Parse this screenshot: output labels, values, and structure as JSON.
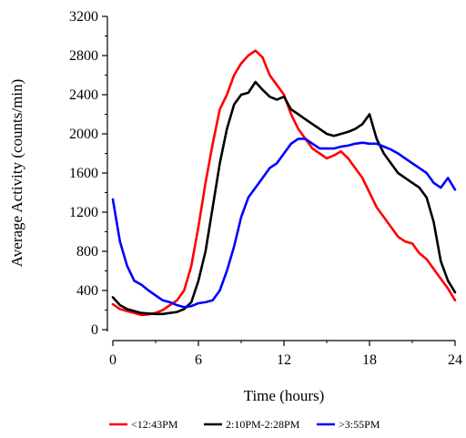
{
  "chart_data": {
    "type": "line",
    "xlabel": "Time (hours)",
    "ylabel": "Average Activity (counts/min)",
    "xlim": [
      0,
      24
    ],
    "ylim": [
      0,
      3200
    ],
    "xticks": [
      0,
      6,
      12,
      18,
      24
    ],
    "yticks": [
      0,
      400,
      800,
      1200,
      1600,
      2000,
      2400,
      2800,
      3200
    ],
    "grid": false,
    "legend_position": "bottom",
    "series": [
      {
        "name": "<12:43PM",
        "color": "#ff0000",
        "x": [
          0,
          0.5,
          1,
          1.5,
          2,
          2.5,
          3,
          3.5,
          4,
          4.5,
          5,
          5.5,
          6,
          6.5,
          7,
          7.5,
          8,
          8.5,
          9,
          9.5,
          10,
          10.5,
          11,
          11.5,
          12,
          12.5,
          13,
          13.5,
          14,
          14.5,
          15,
          15.5,
          16,
          16.5,
          17,
          17.5,
          18,
          18.5,
          19,
          19.5,
          20,
          20.5,
          21,
          21.5,
          22,
          22.5,
          23,
          23.5,
          24
        ],
        "values": [
          260,
          210,
          190,
          170,
          150,
          155,
          170,
          200,
          250,
          300,
          400,
          650,
          1050,
          1500,
          1900,
          2250,
          2400,
          2600,
          2720,
          2800,
          2850,
          2780,
          2600,
          2500,
          2400,
          2200,
          2050,
          1950,
          1850,
          1800,
          1750,
          1780,
          1820,
          1750,
          1650,
          1550,
          1400,
          1250,
          1150,
          1050,
          950,
          900,
          880,
          780,
          720,
          620,
          520,
          420,
          300
        ]
      },
      {
        "name": "2:10PM-2:28PM",
        "color": "#000000",
        "x": [
          0,
          0.5,
          1,
          1.5,
          2,
          2.5,
          3,
          3.5,
          4,
          4.5,
          5,
          5.5,
          6,
          6.5,
          7,
          7.5,
          8,
          8.5,
          9,
          9.5,
          10,
          10.5,
          11,
          11.5,
          12,
          12.5,
          13,
          13.5,
          14,
          14.5,
          15,
          15.5,
          16,
          16.5,
          17,
          17.5,
          18,
          18.5,
          19,
          19.5,
          20,
          20.5,
          21,
          21.5,
          22,
          22.5,
          23,
          23.5,
          24
        ],
        "values": [
          330,
          250,
          210,
          190,
          170,
          165,
          160,
          160,
          170,
          180,
          210,
          280,
          500,
          800,
          1250,
          1700,
          2050,
          2300,
          2400,
          2420,
          2530,
          2450,
          2380,
          2350,
          2380,
          2250,
          2200,
          2150,
          2100,
          2050,
          2000,
          1980,
          2000,
          2020,
          2050,
          2100,
          2200,
          1950,
          1800,
          1700,
          1600,
          1550,
          1500,
          1450,
          1350,
          1100,
          700,
          500,
          380
        ]
      },
      {
        "name": ">3:55PM",
        "color": "#0000ff",
        "x": [
          0,
          0.5,
          1,
          1.5,
          2,
          2.5,
          3,
          3.5,
          4,
          4.5,
          5,
          5.5,
          6,
          6.5,
          7,
          7.5,
          8,
          8.5,
          9,
          9.5,
          10,
          10.5,
          11,
          11.5,
          12,
          12.5,
          13,
          13.5,
          14,
          14.5,
          15,
          15.5,
          16,
          16.5,
          17,
          17.5,
          18,
          18.5,
          19,
          19.5,
          20,
          20.5,
          21,
          21.5,
          22,
          22.5,
          23,
          23.5,
          24
        ],
        "values": [
          1330,
          900,
          650,
          500,
          460,
          400,
          350,
          300,
          280,
          250,
          230,
          240,
          270,
          280,
          300,
          400,
          600,
          850,
          1150,
          1350,
          1450,
          1550,
          1650,
          1700,
          1800,
          1900,
          1950,
          1950,
          1900,
          1850,
          1850,
          1850,
          1870,
          1880,
          1900,
          1910,
          1900,
          1900,
          1870,
          1840,
          1800,
          1750,
          1700,
          1650,
          1600,
          1500,
          1450,
          1550,
          1430
        ]
      }
    ]
  }
}
